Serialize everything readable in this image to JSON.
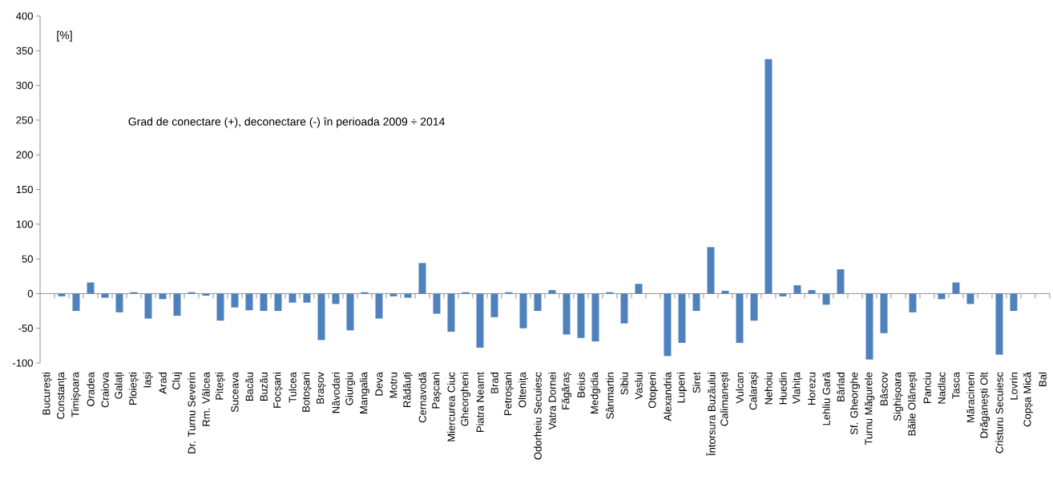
{
  "chart_data": {
    "type": "bar",
    "title": "Grad de conectare (+), deconectare (-) în perioada 2009 ÷ 2014",
    "ylabel": "[%]",
    "categories": [
      "București",
      "Constanța",
      "Timișoara",
      "Oradea",
      "Craiova",
      "Galați",
      "Ploiești",
      "Iași",
      "Arad",
      "Cluj",
      "Dr. Turnu Severin",
      "Rm. Vâlcea",
      "Pitești",
      "Suceava",
      "Bacău",
      "Buzău",
      "Focșani",
      "Tulcea",
      "Botoșani",
      "Brașov",
      "Năvodari",
      "Giurgiu",
      "Mangalia",
      "Deva",
      "Motru",
      "Rădăuți",
      "Cernavodă",
      "Pașcani",
      "Miercurea Ciuc",
      "Gheorgheni",
      "Piatra Neamt",
      "Brad",
      "Petroșani",
      "Oltenița",
      "Odorheiu Secuiesc",
      "Vatra Dornei",
      "Făgăraș",
      "Beius",
      "Medgidia",
      "Sânmartin",
      "Sibiu",
      "Vaslui",
      "Otopeni",
      "Alexandria",
      "Lupeni",
      "Siret",
      "Întorsura Buzăului",
      "Calimanești",
      "Vulcan",
      "Calarași",
      "Nehoiu",
      "Huedin",
      "Vlahița",
      "Horezu",
      "Lehliu Gară",
      "Bârlad",
      "Sf. Gheorghe",
      "Turnu Măgurele",
      "Bâscov",
      "Sighișoara",
      "Băile Olănești",
      "Panciu",
      "Nadlac",
      "Tasca",
      "Măracineni",
      "Drăganești Olt",
      "Cristuru Secuiesc",
      "Lovrin",
      "Copșa Mică",
      "Bal"
    ],
    "values": [
      0,
      -4,
      -25,
      16,
      -6,
      -27,
      2,
      -36,
      -8,
      -32,
      2,
      -3,
      -39,
      -20,
      -24,
      -25,
      -25,
      -13,
      -13,
      -67,
      -15,
      -53,
      2,
      -36,
      -4,
      -6,
      44,
      -29,
      -55,
      2,
      -78,
      -34,
      2,
      -50,
      -25,
      5,
      -59,
      -64,
      -69,
      2,
      -43,
      14,
      0,
      -90,
      -71,
      -25,
      67,
      4,
      -71,
      -39,
      338,
      -4,
      12,
      5,
      -16,
      35,
      0,
      -95,
      -57,
      0,
      -27,
      0,
      -8,
      16,
      -15,
      0,
      -88,
      -25,
      0,
      0
    ],
    "color": "#4f81bd",
    "ylim": [
      -100,
      400
    ],
    "yticks": [
      -100,
      -50,
      0,
      50,
      100,
      150,
      200,
      250,
      300,
      350,
      400
    ]
  }
}
